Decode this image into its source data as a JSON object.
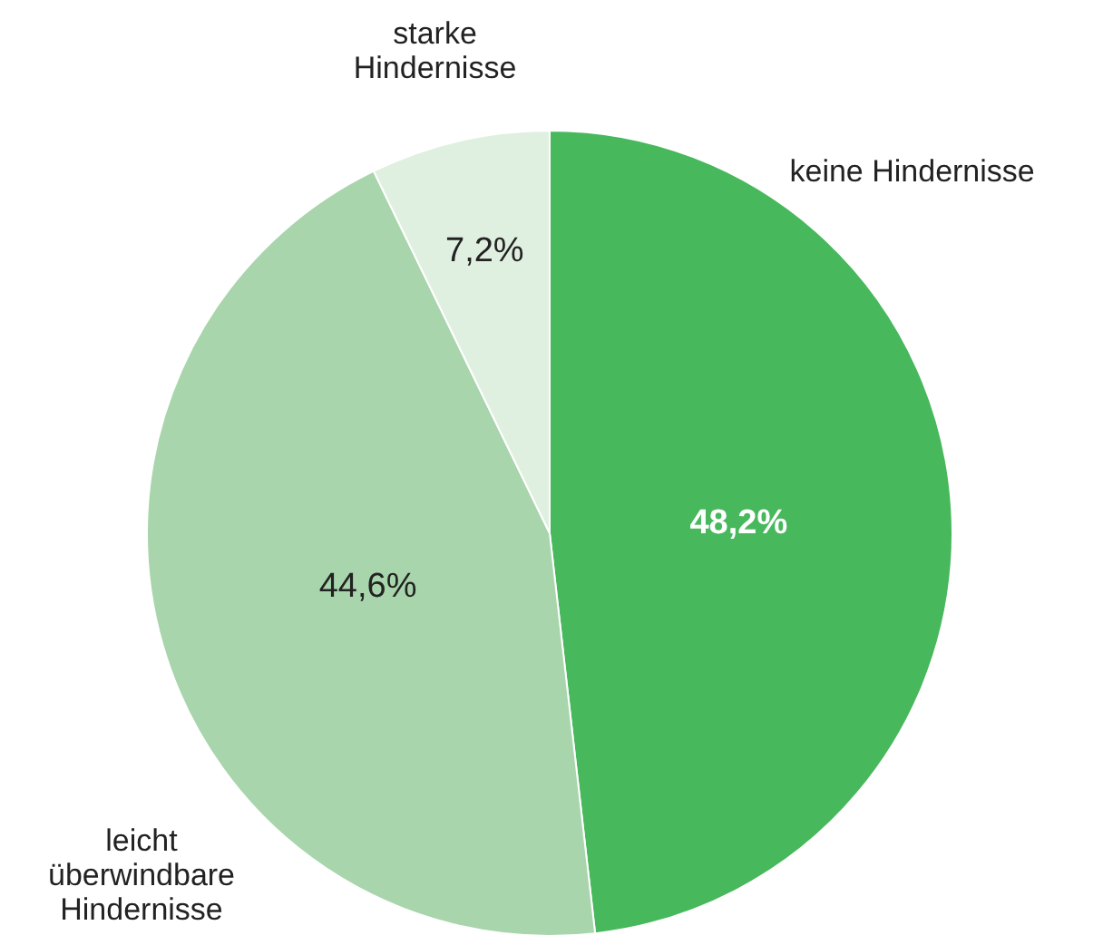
{
  "chart_data": {
    "type": "pie",
    "categories": [
      "keine Hindernisse",
      "leicht überwindbare Hindernisse",
      "starke Hindernisse"
    ],
    "values": [
      48.2,
      44.6,
      7.2
    ],
    "colors": [
      "#47b85c",
      "#a8d5ab",
      "#e0f0e0"
    ],
    "value_labels": [
      "48,2%",
      "44,6%",
      "7,2%"
    ]
  }
}
